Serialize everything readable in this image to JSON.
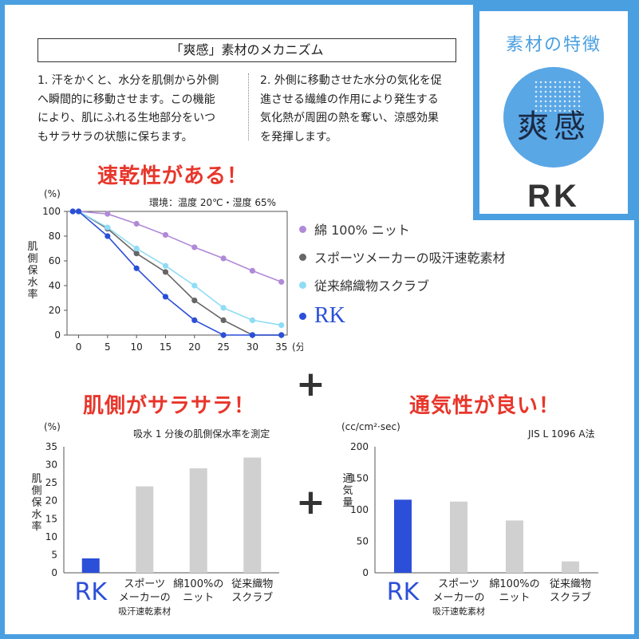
{
  "badge": {
    "label": "素材の特徴",
    "kanji": "爽感",
    "brand": "RK"
  },
  "mechanism": {
    "title": "「爽感」素材のメカニズム",
    "col1": [
      "1. 汗をかくと、水分を肌側から外側",
      "へ瞬間的に移動させます。この機能",
      "により、肌にふれる生地部分をいつ",
      "もサラサラの状態に保ちます。"
    ],
    "col2": [
      "2. 外側に移動させた水分の気化を促",
      "進させる繊維の作用により発生する",
      "気化熱が周囲の熱を奪い、涼感効果",
      "を発揮します。"
    ]
  },
  "colors": {
    "accent_red": "#e8362b",
    "frame_blue": "#4a9fe0",
    "rk_blue": "#2b4fd8",
    "bar_gray": "#d0d0d0"
  },
  "chart_data": [
    {
      "type": "line",
      "title": "速乾性がある！",
      "subtitle": "環境：温度 20℃・湿度 65%",
      "ylabel": "肌側保水率",
      "yunit": "(%)",
      "xunit": "(分)",
      "x": [
        0,
        5,
        10,
        15,
        20,
        25,
        30,
        35
      ],
      "xlim": [
        -2,
        36
      ],
      "ylim": [
        0,
        100
      ],
      "yticks": [
        0,
        20,
        40,
        60,
        80,
        100
      ],
      "series": [
        {
          "name": "綿 100% ニット",
          "color": "#b08ad8",
          "x": [
            -1,
            0,
            5,
            10,
            15,
            20,
            25,
            30,
            35
          ],
          "values": [
            100,
            100,
            98,
            90,
            81,
            71,
            62,
            52,
            43
          ]
        },
        {
          "name": "スポーツメーカーの吸汗速乾素材",
          "color": "#666666",
          "x": [
            -1,
            0,
            5,
            10,
            15,
            20,
            25,
            30,
            35
          ],
          "values": [
            100,
            100,
            86,
            66,
            51,
            28,
            12,
            0,
            0
          ]
        },
        {
          "name": "従来綿織物スクラブ",
          "color": "#8fdcf6",
          "x": [
            -1,
            0,
            5,
            10,
            15,
            20,
            25,
            30,
            35
          ],
          "values": [
            100,
            100,
            87,
            70,
            56,
            40,
            22,
            12,
            8
          ]
        },
        {
          "name": "RK",
          "color": "#2b4fd8",
          "x": [
            -1,
            0,
            5,
            10,
            15,
            20,
            25,
            30,
            35
          ],
          "values": [
            100,
            100,
            80,
            54,
            31,
            12,
            0,
            0,
            0
          ]
        }
      ]
    },
    {
      "type": "bar",
      "title": "肌側がサラサラ！",
      "subtitle": "吸水 1 分後の肌側保水率を測定",
      "ylabel": "肌側保水率",
      "yunit": "(%)",
      "ylim": [
        0,
        35
      ],
      "yticks": [
        0,
        5,
        10,
        15,
        20,
        25,
        30,
        35
      ],
      "categories": [
        "RK",
        [
          "スポーツ",
          "メーカーの",
          "吸汗速乾素材"
        ],
        [
          "綿100%の",
          "ニット"
        ],
        [
          "従来織物",
          "スクラブ"
        ]
      ],
      "values": [
        4,
        24,
        29,
        32
      ]
    },
    {
      "type": "bar",
      "title": "通気性が良い！",
      "subtitle": "JIS L 1096 A法",
      "ylabel": "通気量",
      "yunit": "(cc/cm²·sec)",
      "ylim": [
        0,
        200
      ],
      "yticks": [
        0,
        50,
        100,
        150,
        200
      ],
      "categories": [
        "RK",
        [
          "スポーツ",
          "メーカーの",
          "吸汗速乾素材"
        ],
        [
          "綿100%の",
          "ニット"
        ],
        [
          "従来織物",
          "スクラブ"
        ]
      ],
      "values": [
        116,
        113,
        83,
        18
      ]
    }
  ],
  "plus_signs": [
    "+",
    "+"
  ]
}
